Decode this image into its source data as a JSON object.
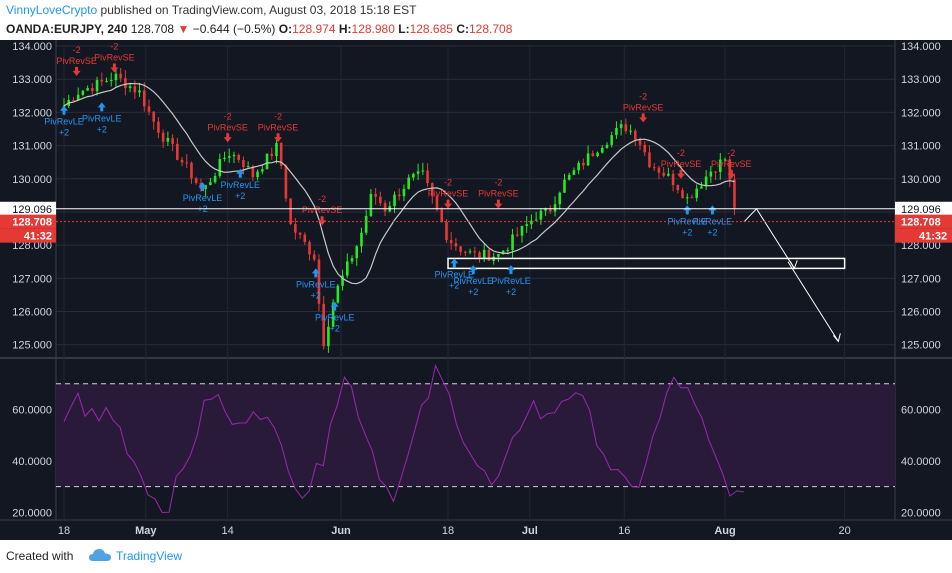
{
  "header": {
    "author": "VinnyLoveCrypto",
    "published_text": "published on TradingView.com, August 03, 2018 15:18 EST",
    "symbol": "OANDA:EURJPY, 240",
    "last": "128.708",
    "change": "−0.644 (−0.5%)",
    "o_label": "O:",
    "o": "128.974",
    "h_label": "H:",
    "h": "128.980",
    "l_label": "L:",
    "l": "128.685",
    "c_label": "C:",
    "c": "128.708"
  },
  "footer": {
    "created_with": "Created with",
    "brand": "TradingView"
  },
  "colors": {
    "background": "#131722",
    "up": "#26e826",
    "down": "#e53935",
    "ma": "#c8c8c8",
    "rsi": "#9c27b0",
    "rsi_band": "#2a1a3a",
    "signal_up": "#2196f3",
    "signal_down": "#e53935"
  },
  "chart_data": [
    {
      "type": "candlestick",
      "title": "OANDA:EURJPY, 240",
      "ylim": [
        124.6,
        134.0
      ],
      "y_ticks": [
        "125.000",
        "126.000",
        "127.000",
        "128.000",
        "129.000",
        "130.000",
        "131.000",
        "132.000",
        "133.000",
        "134.000"
      ],
      "x_ticks": [
        "18",
        "May",
        "14",
        "Jun",
        "18",
        "Jul",
        "16",
        "Aug",
        "20"
      ],
      "markers": [
        {
          "label": "129.096",
          "value": 129.096,
          "color": "#ffffff"
        },
        {
          "label": "128.708",
          "value": 128.708,
          "color": "#e53935"
        },
        {
          "label": "41:32",
          "color": "#e53935"
        }
      ],
      "closes": [
        {
          "date": "Apr 18",
          "value": 132.2
        },
        {
          "date": "Apr 20",
          "value": 132.6
        },
        {
          "date": "Apr 24",
          "value": 132.9
        },
        {
          "date": "Apr 26",
          "value": 133.1
        },
        {
          "date": "Apr 30",
          "value": 132.6
        },
        {
          "date": "May 2",
          "value": 131.8
        },
        {
          "date": "May 4",
          "value": 131.2
        },
        {
          "date": "May 8",
          "value": 130.2
        },
        {
          "date": "May 10",
          "value": 129.6
        },
        {
          "date": "May 14",
          "value": 130.8
        },
        {
          "date": "May 16",
          "value": 130.6
        },
        {
          "date": "May 18",
          "value": 130.1
        },
        {
          "date": "May 22",
          "value": 131.0
        },
        {
          "date": "May 24",
          "value": 128.6
        },
        {
          "date": "May 28",
          "value": 127.6
        },
        {
          "date": "May 29",
          "value": 124.9
        },
        {
          "date": "May 31",
          "value": 126.5
        },
        {
          "date": "Jun 4",
          "value": 128.2
        },
        {
          "date": "Jun 6",
          "value": 129.6
        },
        {
          "date": "Jun 8",
          "value": 129.1
        },
        {
          "date": "Jun 12",
          "value": 130.0
        },
        {
          "date": "Jun 14",
          "value": 130.1
        },
        {
          "date": "Jun 18",
          "value": 128.2
        },
        {
          "date": "Jun 20",
          "value": 127.9
        },
        {
          "date": "Jun 22",
          "value": 127.7
        },
        {
          "date": "Jun 26",
          "value": 127.7
        },
        {
          "date": "Jun 28",
          "value": 128.1
        },
        {
          "date": "Jul 2",
          "value": 128.9
        },
        {
          "date": "Jul 4",
          "value": 129.0
        },
        {
          "date": "Jul 6",
          "value": 129.8
        },
        {
          "date": "Jul 10",
          "value": 130.6
        },
        {
          "date": "Jul 12",
          "value": 131.0
        },
        {
          "date": "Jul 16",
          "value": 131.6
        },
        {
          "date": "Jul 18",
          "value": 131.3
        },
        {
          "date": "Jul 20",
          "value": 130.5
        },
        {
          "date": "Jul 24",
          "value": 129.9
        },
        {
          "date": "Jul 26",
          "value": 129.4
        },
        {
          "date": "Jul 30",
          "value": 130.3
        },
        {
          "date": "Aug 1",
          "value": 130.6
        },
        {
          "date": "Aug 3",
          "value": 128.708
        }
      ],
      "ma_label": "",
      "projection": {
        "box": [
          127.3,
          127.6
        ],
        "targets": [
          127.3,
          125.1
        ]
      },
      "signals": [
        {
          "type": "up",
          "label": "PivRevLE",
          "count": "+2",
          "date": "Apr 18",
          "price": 132.2
        },
        {
          "type": "up",
          "label": "PivRevLE",
          "count": "+2",
          "date": "Apr 24",
          "price": 132.3
        },
        {
          "type": "down",
          "label": "PivRevSE",
          "count": "-2",
          "date": "Apr 20",
          "price": 133.1
        },
        {
          "type": "down",
          "label": "PivRevSE",
          "count": "-2",
          "date": "Apr 26",
          "price": 133.2
        },
        {
          "type": "up",
          "label": "PivRevLE",
          "count": "+2",
          "date": "May 10",
          "price": 129.9
        },
        {
          "type": "up",
          "label": "PivRevLE",
          "count": "+2",
          "date": "May 16",
          "price": 130.3
        },
        {
          "type": "down",
          "label": "PivRevSE",
          "count": "-2",
          "date": "May 14",
          "price": 131.1
        },
        {
          "type": "down",
          "label": "PivRevSE",
          "count": "-2",
          "date": "May 22",
          "price": 131.1
        },
        {
          "type": "up",
          "label": "PivRevLE",
          "count": "+2",
          "date": "May 28",
          "price": 127.3
        },
        {
          "type": "up",
          "label": "PivRevLE",
          "count": "+2",
          "date": "May 31",
          "price": 126.3
        },
        {
          "type": "down",
          "label": "PivRevSE",
          "count": "-2",
          "date": "May 29",
          "price": 128.6
        },
        {
          "type": "down",
          "label": "PivRevSE",
          "count": "-2",
          "date": "Jun 18",
          "price": 129.1
        },
        {
          "type": "up",
          "label": "PivRevLE",
          "count": "+2",
          "date": "Jun 19",
          "price": 127.6
        },
        {
          "type": "up",
          "label": "PivRevLE",
          "count": "+2",
          "date": "Jun 22",
          "price": 127.4
        },
        {
          "type": "up",
          "label": "PivRevLE",
          "count": "+2",
          "date": "Jun 28",
          "price": 127.4
        },
        {
          "type": "down",
          "label": "PivRevSE",
          "count": "-2",
          "date": "Jun 26",
          "price": 129.1
        },
        {
          "type": "down",
          "label": "PivRevSE",
          "count": "-2",
          "date": "Jul 19",
          "price": 131.7
        },
        {
          "type": "down",
          "label": "PivRevSE",
          "count": "-2",
          "date": "Jul 25",
          "price": 130.0
        },
        {
          "type": "down",
          "label": "PivRevSE",
          "count": "-2",
          "date": "Aug 2",
          "price": 130.0
        },
        {
          "type": "up",
          "label": "PivRevLE",
          "count": "+2",
          "date": "Jul 26",
          "price": 129.2
        },
        {
          "type": "up",
          "label": "PivRevLE",
          "count": "+2",
          "date": "Jul 30",
          "price": 129.2
        }
      ]
    },
    {
      "type": "line",
      "title": "",
      "ylim": [
        17,
        80
      ],
      "y_ticks": [
        "20.0000",
        "40.0000",
        "60.0000"
      ],
      "levels": [
        30,
        70
      ],
      "series": [
        {
          "name": "",
          "values": [
            56,
            62,
            64,
            60,
            58,
            55,
            60,
            57,
            52,
            46,
            40,
            35,
            30,
            25,
            22,
            24,
            30,
            36,
            44,
            52,
            60,
            66,
            64,
            58,
            55,
            52,
            58,
            62,
            60,
            55,
            50,
            45,
            40,
            33,
            28,
            30,
            35,
            42,
            58,
            64,
            72,
            68,
            60,
            52,
            44,
            36,
            30,
            28,
            32,
            40,
            50,
            58,
            66,
            74,
            70,
            64,
            58,
            50,
            44,
            38,
            34,
            30,
            32,
            38,
            46,
            54,
            60,
            62,
            58,
            56,
            60,
            64,
            66,
            68,
            62,
            56,
            50,
            44,
            38,
            34,
            30,
            28,
            32,
            40,
            48,
            56,
            64,
            72,
            70,
            66,
            60,
            54,
            46,
            40,
            34,
            30,
            26,
            24
          ]
        }
      ]
    }
  ]
}
